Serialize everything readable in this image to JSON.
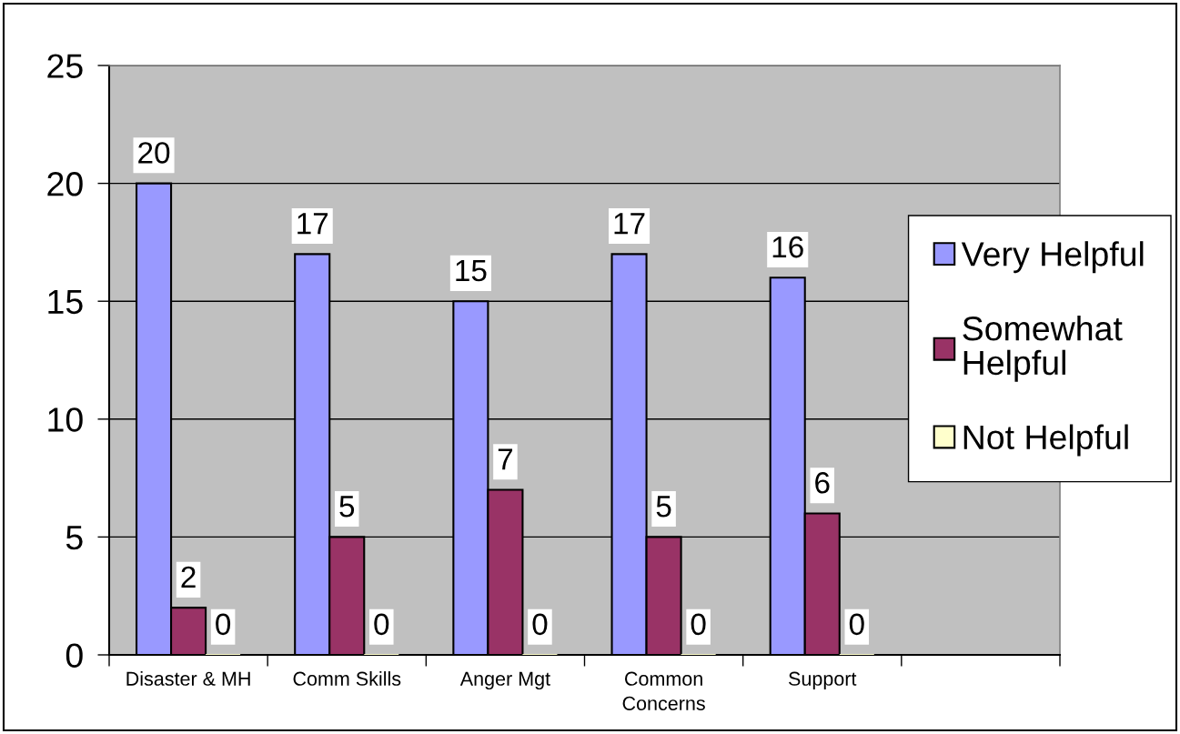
{
  "chart_data": {
    "type": "bar",
    "categories": [
      "Disaster & MH",
      "Comm Skills",
      "Anger Mgt",
      "Common Concerns",
      "Support",
      null
    ],
    "series": [
      {
        "name": "Very Helpful",
        "color": "#9999ff",
        "values": [
          20,
          17,
          15,
          17,
          16,
          null
        ]
      },
      {
        "name": "Somewhat Helpful",
        "color": "#993366",
        "values": [
          2,
          5,
          7,
          5,
          6,
          null
        ]
      },
      {
        "name": "Not Helpful",
        "color": "#ffffcc",
        "values": [
          0,
          0,
          0,
          0,
          0,
          null
        ]
      }
    ],
    "ylim": [
      0,
      25
    ],
    "yticks": [
      0,
      5,
      10,
      15,
      20,
      25
    ],
    "grid": "y",
    "legend": "right",
    "data_labels": true
  }
}
